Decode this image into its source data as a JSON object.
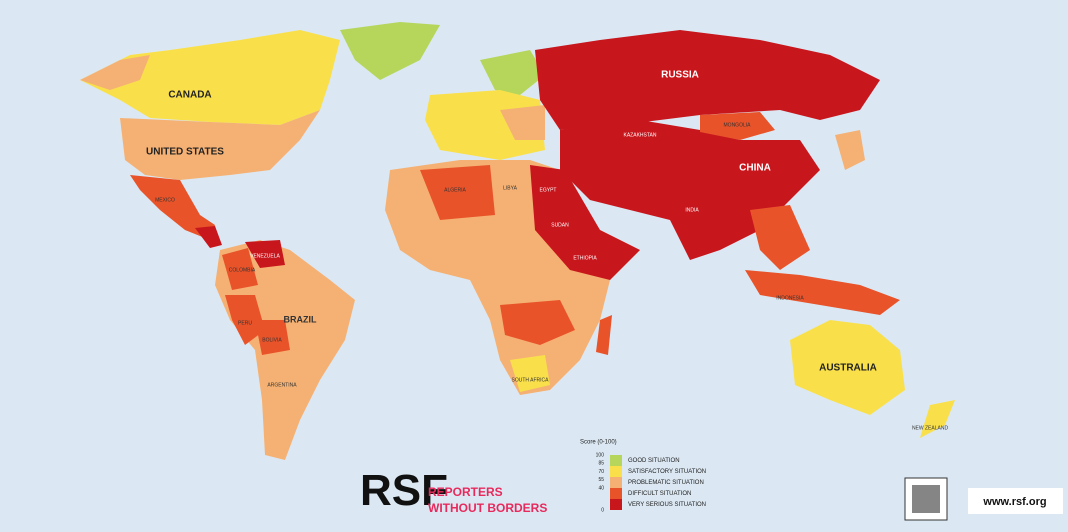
{
  "countries": [
    "CANADA",
    "UNITED STATES",
    "MEXICO",
    "BRAZIL",
    "VENEZUELA",
    "COLOMBIA",
    "PERU",
    "BOLIVIA",
    "ARGENTINA",
    "RUSSIA",
    "CHINA",
    "INDIA",
    "MONGOLIA",
    "KAZAKHSTAN",
    "ALGERIA",
    "LIBYA",
    "EGYPT",
    "SUDAN",
    "ETHIOPIA",
    "AUSTRALIA",
    "NEW ZEALAND",
    "INDONESIA",
    "SOUTH AFRICA"
  ],
  "legend": {
    "title": "Score (0-100)",
    "ticks": [
      100,
      85,
      70,
      55,
      40,
      0
    ],
    "items": [
      {
        "label": "GOOD SITUATION",
        "color": "#b5d65b"
      },
      {
        "label": "SATISFACTORY SITUATION",
        "color": "#f9e04b"
      },
      {
        "label": "PROBLEMATIC SITUATION",
        "color": "#f5b173"
      },
      {
        "label": "DIFFICULT SITUATION",
        "color": "#e8532a"
      },
      {
        "label": "VERY SERIOUS SITUATION",
        "color": "#c8161d"
      }
    ]
  },
  "logo": {
    "mark": "RSF",
    "line1": "REPORTERS",
    "line2": "WITHOUT BORDERS"
  },
  "footer": {
    "url": "www.rsf.org"
  }
}
